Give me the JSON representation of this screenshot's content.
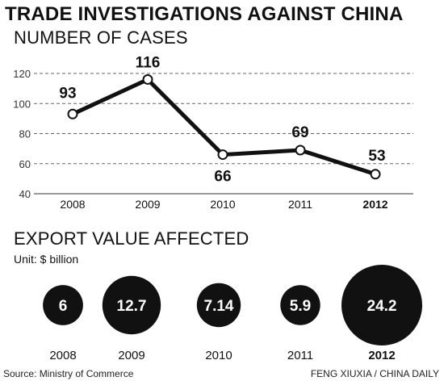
{
  "title": "TRADE INVESTIGATIONS AGAINST CHINA",
  "cases_section_title": "NUMBER OF CASES",
  "export_section_title": "EXPORT VALUE AFFECTED",
  "export_unit": "Unit: $ billion",
  "source": "Source: Ministry of Commerce",
  "credit": "FENG XIUXIA / CHINA DAILY",
  "chart_data": [
    {
      "type": "line",
      "title": "NUMBER OF CASES",
      "categories": [
        "2008",
        "2009",
        "2010",
        "2011",
        "2012"
      ],
      "values": [
        93,
        116,
        66,
        69,
        53
      ],
      "data_labels": [
        "93",
        "116",
        "66",
        "69",
        "53"
      ],
      "yticks": [
        "120",
        "100",
        "80",
        "60",
        "40"
      ],
      "ytick_values": [
        120,
        100,
        80,
        60,
        40
      ],
      "ylim": [
        40,
        120
      ],
      "grid": "dashed horizontal",
      "highlight_category": "2012",
      "colors": {
        "line": "#111111",
        "marker_fill": "#ffffff",
        "grid": "#666666"
      }
    },
    {
      "type": "bubble",
      "title": "EXPORT VALUE AFFECTED",
      "unit": "Unit: $ billion",
      "categories": [
        "2008",
        "2009",
        "2010",
        "2011",
        "2012"
      ],
      "values": [
        6,
        12.7,
        7.14,
        5.9,
        24.2
      ],
      "data_labels": [
        "6",
        "12.7",
        "7.14",
        "5.9",
        "24.2"
      ],
      "highlight_category": "2012",
      "colors": {
        "bubble": "#111111",
        "label": "#ffffff"
      }
    }
  ]
}
